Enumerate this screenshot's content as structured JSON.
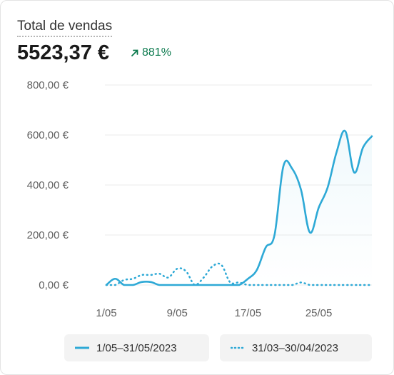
{
  "header": {
    "title": "Total de vendas",
    "total": "5523,37 €",
    "change": "881%"
  },
  "colors": {
    "current": "#2ea9d6",
    "previous": "#2ea9d6",
    "change_positive": "#0c7a4e"
  },
  "legend": {
    "current_label": "1/05–31/05/2023",
    "previous_label": "31/03–30/04/2023"
  },
  "chart_data": {
    "type": "line",
    "title": "",
    "xlabel": "",
    "ylabel": "",
    "ylim": [
      0,
      800
    ],
    "yticks": [
      {
        "value": 0,
        "label": "0,00 €"
      },
      {
        "value": 200,
        "label": "200,00 €"
      },
      {
        "value": 400,
        "label": "400,00 €"
      },
      {
        "value": 600,
        "label": "600,00 €"
      },
      {
        "value": 800,
        "label": "800,00 €"
      }
    ],
    "xticks": [
      {
        "day": 1,
        "label": "1/05"
      },
      {
        "day": 9,
        "label": "9/05"
      },
      {
        "day": 17,
        "label": "17/05"
      },
      {
        "day": 25,
        "label": "25/05"
      }
    ],
    "x": [
      1,
      2,
      3,
      4,
      5,
      6,
      7,
      8,
      9,
      10,
      11,
      12,
      13,
      14,
      15,
      16,
      17,
      18,
      19,
      20,
      21,
      22,
      23,
      24,
      25,
      26,
      27,
      28,
      29,
      30,
      31
    ],
    "grid": true,
    "legend_position": "bottom",
    "series": [
      {
        "name": "1/05–31/05/2023",
        "style": "solid",
        "values": [
          0,
          25,
          0,
          0,
          12,
          12,
          0,
          0,
          0,
          0,
          0,
          0,
          0,
          0,
          0,
          0,
          25,
          60,
          150,
          200,
          475,
          465,
          380,
          210,
          310,
          390,
          530,
          615,
          450,
          550,
          595
        ]
      },
      {
        "name": "31/03–30/04/2023",
        "style": "dotted",
        "values": [
          0,
          0,
          20,
          25,
          40,
          40,
          45,
          30,
          65,
          55,
          0,
          30,
          75,
          80,
          10,
          10,
          0,
          0,
          0,
          0,
          0,
          0,
          10,
          0,
          0,
          0,
          0,
          0,
          0,
          0,
          0
        ]
      }
    ]
  }
}
